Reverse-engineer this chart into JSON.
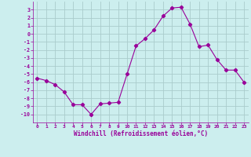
{
  "x": [
    0,
    1,
    2,
    3,
    4,
    5,
    6,
    7,
    8,
    9,
    10,
    11,
    12,
    13,
    14,
    15,
    16,
    17,
    18,
    19,
    20,
    21,
    22,
    23
  ],
  "y": [
    -5.5,
    -5.8,
    -6.3,
    -7.2,
    -8.8,
    -8.8,
    -10.0,
    -8.7,
    -8.6,
    -8.5,
    -5.0,
    -1.5,
    -0.6,
    0.5,
    2.2,
    3.2,
    3.3,
    1.2,
    -1.6,
    -1.4,
    -3.2,
    -4.5,
    -4.5,
    -6.0
  ],
  "line_color": "#990099",
  "marker": "D",
  "marker_size": 2.2,
  "bg_color": "#cceeee",
  "grid_color": "#aacccc",
  "xlabel": "Windchill (Refroidissement éolien,°C)",
  "xlabel_color": "#990099",
  "tick_color": "#990099",
  "ylim": [
    -11,
    4
  ],
  "xlim": [
    -0.5,
    23.5
  ],
  "yticks": [
    3,
    2,
    1,
    0,
    -1,
    -2,
    -3,
    -4,
    -5,
    -6,
    -7,
    -8,
    -9,
    -10
  ],
  "xticks": [
    0,
    1,
    2,
    3,
    4,
    5,
    6,
    7,
    8,
    9,
    10,
    11,
    12,
    13,
    14,
    15,
    16,
    17,
    18,
    19,
    20,
    21,
    22,
    23
  ]
}
